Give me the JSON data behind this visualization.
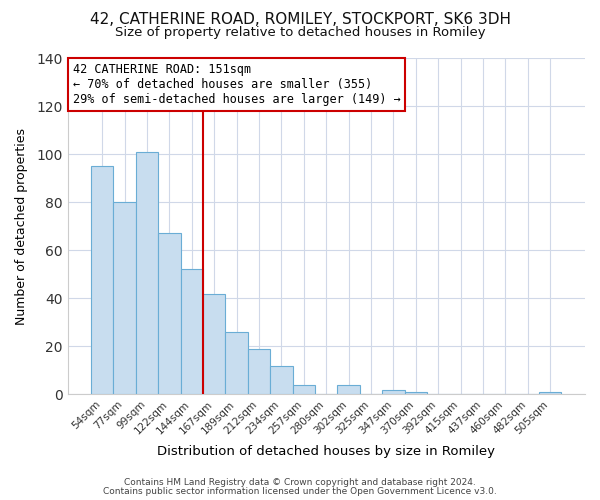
{
  "title": "42, CATHERINE ROAD, ROMILEY, STOCKPORT, SK6 3DH",
  "subtitle": "Size of property relative to detached houses in Romiley",
  "xlabel": "Distribution of detached houses by size in Romiley",
  "ylabel": "Number of detached properties",
  "bar_labels": [
    "54sqm",
    "77sqm",
    "99sqm",
    "122sqm",
    "144sqm",
    "167sqm",
    "189sqm",
    "212sqm",
    "234sqm",
    "257sqm",
    "280sqm",
    "302sqm",
    "325sqm",
    "347sqm",
    "370sqm",
    "392sqm",
    "415sqm",
    "437sqm",
    "460sqm",
    "482sqm",
    "505sqm"
  ],
  "bar_values": [
    95,
    80,
    101,
    67,
    52,
    42,
    26,
    19,
    12,
    4,
    0,
    4,
    0,
    2,
    1,
    0,
    0,
    0,
    0,
    0,
    1
  ],
  "bar_color": "#c8ddef",
  "bar_edge_color": "#6aadd5",
  "vline_x": 4.5,
  "vline_color": "#cc0000",
  "annotation_title": "42 CATHERINE ROAD: 151sqm",
  "annotation_line1": "← 70% of detached houses are smaller (355)",
  "annotation_line2": "29% of semi-detached houses are larger (149) →",
  "annotation_box_facecolor": "#ffffff",
  "annotation_box_edgecolor": "#cc0000",
  "ylim": [
    0,
    140
  ],
  "yticks": [
    0,
    20,
    40,
    60,
    80,
    100,
    120,
    140
  ],
  "footer1": "Contains HM Land Registry data © Crown copyright and database right 2024.",
  "footer2": "Contains public sector information licensed under the Open Government Licence v3.0.",
  "plot_bg_color": "#ffffff",
  "fig_bg_color": "#ffffff",
  "title_fontsize": 11,
  "subtitle_fontsize": 9.5,
  "grid_color": "#d0d8e8"
}
